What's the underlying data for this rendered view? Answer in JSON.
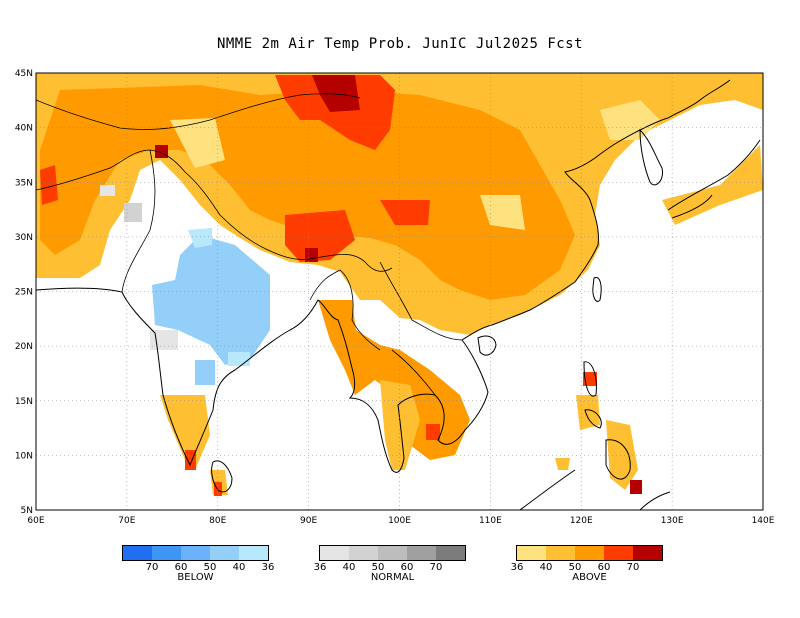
{
  "title": "NMME 2m Air Temp Prob. JunIC  Jul2025 Fcst",
  "map": {
    "lon_range": [
      60,
      140
    ],
    "lat_range": [
      5,
      45
    ],
    "x_ticks": [
      "60E",
      "70E",
      "80E",
      "90E",
      "100E",
      "110E",
      "120E",
      "130E",
      "140E"
    ],
    "y_ticks": [
      "5N",
      "10N",
      "15N",
      "20N",
      "25N",
      "30N",
      "35N",
      "40N",
      "45N"
    ],
    "grid": "dotted"
  },
  "legend": {
    "below": {
      "caption": "BELOW",
      "colors": [
        "#1f6ff0",
        "#3d95f5",
        "#6bb2fa",
        "#93cff9",
        "#b8e8fb"
      ],
      "ticks": [
        "70",
        "60",
        "50",
        "40",
        "36"
      ]
    },
    "normal": {
      "caption": "NORMAL",
      "colors": [
        "#e5e5e5",
        "#d2d2d2",
        "#bdbdbd",
        "#a0a0a0",
        "#7c7c7c"
      ],
      "ticks": [
        "36",
        "40",
        "50",
        "60",
        "70"
      ]
    },
    "above": {
      "caption": "ABOVE",
      "colors": [
        "#ffe280",
        "#ffbf33",
        "#ff9a00",
        "#ff3c00",
        "#b50000"
      ],
      "ticks": [
        "36",
        "40",
        "50",
        "60",
        "70"
      ]
    }
  }
}
